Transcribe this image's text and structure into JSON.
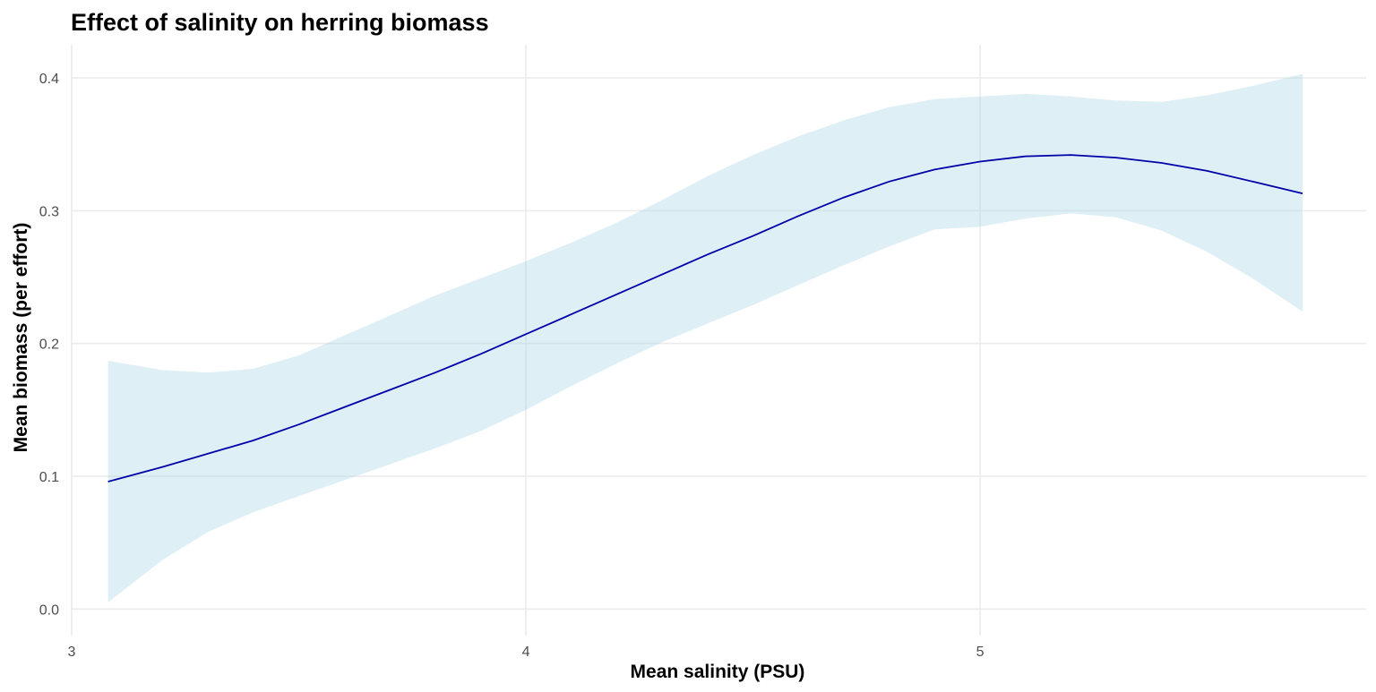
{
  "chart_data": {
    "type": "line",
    "title": "Effect of salinity on herring biomass",
    "xlabel": "Mean salinity (PSU)",
    "ylabel": "Mean biomass (per effort)",
    "xlim": [
      3.0,
      5.85
    ],
    "ylim": [
      -0.02,
      0.425
    ],
    "xticks": [
      3,
      4,
      5
    ],
    "xtick_labels": [
      "3",
      "4",
      "5"
    ],
    "yticks": [
      0.0,
      0.1,
      0.2,
      0.3,
      0.4
    ],
    "ytick_labels": [
      "0.0",
      "0.1",
      "0.2",
      "0.3",
      "0.4"
    ],
    "grid": true,
    "legend": "none",
    "colors": {
      "line": "#0000a8",
      "ribbon": "#add8e6",
      "ribbon_opacity": 0.4,
      "grid": "#ebebeb"
    },
    "series": [
      {
        "x": [
          3.08,
          3.2,
          3.3,
          3.4,
          3.5,
          3.6,
          3.7,
          3.8,
          3.9,
          4.0,
          4.1,
          4.2,
          4.3,
          4.4,
          4.5,
          4.6,
          4.7,
          4.8,
          4.9,
          5.0,
          5.1,
          5.2,
          5.3,
          5.4,
          5.5,
          5.6,
          5.71
        ],
        "y": [
          0.096,
          0.107,
          0.117,
          0.127,
          0.139,
          0.152,
          0.165,
          0.178,
          0.192,
          0.207,
          0.222,
          0.237,
          0.252,
          0.267,
          0.281,
          0.296,
          0.31,
          0.322,
          0.331,
          0.337,
          0.341,
          0.342,
          0.34,
          0.336,
          0.33,
          0.322,
          0.313
        ],
        "lower": [
          0.005,
          0.037,
          0.058,
          0.073,
          0.085,
          0.097,
          0.109,
          0.121,
          0.134,
          0.15,
          0.168,
          0.185,
          0.201,
          0.215,
          0.229,
          0.244,
          0.259,
          0.273,
          0.286,
          0.288,
          0.294,
          0.298,
          0.295,
          0.285,
          0.269,
          0.249,
          0.224
        ],
        "upper": [
          0.187,
          0.18,
          0.178,
          0.181,
          0.191,
          0.206,
          0.221,
          0.236,
          0.249,
          0.262,
          0.276,
          0.291,
          0.308,
          0.326,
          0.342,
          0.356,
          0.368,
          0.378,
          0.384,
          0.386,
          0.388,
          0.386,
          0.383,
          0.382,
          0.387,
          0.394,
          0.403
        ]
      }
    ]
  }
}
